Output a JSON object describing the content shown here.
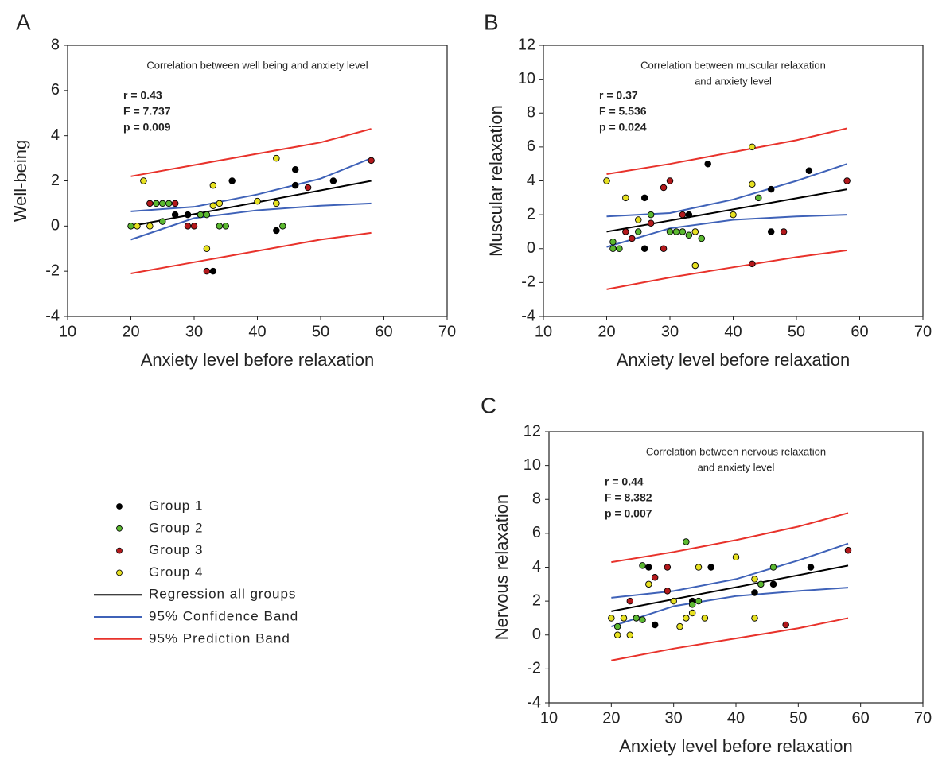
{
  "chart_data": [
    {
      "type": "scatter",
      "panel": "A",
      "title": [
        "Correlation between well being and anxiety level"
      ],
      "annotations": [
        "r = 0.43",
        "F = 7.737",
        "p = 0.009"
      ],
      "x_label": "Anxiety level before relaxation",
      "y_label": "Well-being",
      "xlim": [
        10,
        70
      ],
      "xticks": [
        10,
        20,
        30,
        40,
        50,
        60,
        70
      ],
      "ylim": [
        -4,
        8
      ],
      "yticks": [
        -4,
        -2,
        0,
        2,
        4,
        6,
        8
      ],
      "legend": true,
      "series": [
        {
          "name": "Group 1",
          "type": "scatter",
          "color": "#000000",
          "x": [
            27,
            29,
            33,
            36,
            43,
            46,
            46,
            52
          ],
          "values": [
            0.5,
            0.5,
            -2,
            2,
            -0.2,
            2.5,
            1.8,
            2
          ]
        },
        {
          "name": "Group 2",
          "type": "scatter",
          "color": "#5bb830",
          "x": [
            20,
            24,
            25,
            25,
            26,
            31,
            32,
            34,
            35,
            44
          ],
          "values": [
            0,
            1,
            1,
            0.2,
            1,
            0.5,
            0.5,
            0,
            0,
            0
          ]
        },
        {
          "name": "Group 3",
          "type": "scatter",
          "color": "#b3191c",
          "x": [
            23,
            27,
            29,
            30,
            32,
            48,
            58
          ],
          "values": [
            1,
            1,
            0,
            0,
            -2,
            1.7,
            2.9
          ]
        },
        {
          "name": "Group 4",
          "type": "scatter",
          "color": "#e6e021",
          "x": [
            21,
            22,
            23,
            32,
            33,
            33,
            34,
            40,
            43,
            43
          ],
          "values": [
            0,
            2,
            0,
            -1,
            1.8,
            0.9,
            1,
            1.1,
            3,
            1
          ]
        },
        {
          "name": "Regression all groups",
          "type": "line",
          "color": "#000000",
          "x": [
            20,
            58
          ],
          "values": [
            0,
            2
          ]
        },
        {
          "name": "95% Confidence Band",
          "type": "band",
          "color": "#3f62b8",
          "x": [
            20,
            30,
            40,
            50,
            58
          ],
          "upper": [
            0.65,
            0.85,
            1.4,
            2.1,
            3
          ],
          "lower": [
            -0.6,
            0.35,
            0.7,
            0.9,
            1
          ]
        },
        {
          "name": "95% Prediction Band",
          "type": "band",
          "color": "#e8322b",
          "x": [
            20,
            30,
            40,
            50,
            58
          ],
          "upper": [
            2.2,
            2.7,
            3.2,
            3.7,
            4.3
          ],
          "lower": [
            -2.1,
            -1.6,
            -1.1,
            -0.6,
            -0.3
          ]
        }
      ]
    },
    {
      "type": "scatter",
      "panel": "B",
      "title": [
        "Correlation between muscular relaxation",
        "and anxiety level"
      ],
      "annotations": [
        "r = 0.37",
        "F = 5.536",
        "p = 0.024"
      ],
      "x_label": "Anxiety level before relaxation",
      "y_label": "Muscular relaxation",
      "xlim": [
        10,
        70
      ],
      "xticks": [
        10,
        20,
        30,
        40,
        50,
        60,
        70
      ],
      "ylim": [
        -4,
        12
      ],
      "yticks": [
        -4,
        -2,
        0,
        2,
        4,
        6,
        8,
        10,
        12
      ],
      "legend": false,
      "series": [
        {
          "name": "Group 1",
          "type": "scatter",
          "color": "#000000",
          "x": [
            26,
            26,
            33,
            36,
            46,
            46,
            52
          ],
          "values": [
            3,
            0,
            2,
            5,
            3.5,
            1,
            4.6
          ]
        },
        {
          "name": "Group 2",
          "type": "scatter",
          "color": "#5bb830",
          "x": [
            21,
            21,
            22,
            25,
            27,
            30,
            31,
            32,
            33,
            35,
            44
          ],
          "values": [
            0.4,
            0,
            0,
            1,
            2,
            1,
            1,
            1,
            0.8,
            0.6,
            3
          ]
        },
        {
          "name": "Group 3",
          "type": "scatter",
          "color": "#b3191c",
          "x": [
            23,
            24,
            27,
            29,
            29,
            30,
            32,
            43,
            48,
            58
          ],
          "values": [
            1,
            0.6,
            1.5,
            3.6,
            0,
            4,
            2,
            -0.9,
            1,
            4
          ]
        },
        {
          "name": "Group 4",
          "type": "scatter",
          "color": "#e6e021",
          "x": [
            20,
            23,
            25,
            34,
            34,
            40,
            43,
            43
          ],
          "values": [
            4,
            3,
            1.7,
            1,
            -1,
            2,
            6,
            3.8
          ]
        },
        {
          "name": "Regression all groups",
          "type": "line",
          "color": "#000000",
          "x": [
            20,
            58
          ],
          "values": [
            1,
            3.5
          ]
        },
        {
          "name": "95% Confidence Band",
          "type": "band",
          "color": "#3f62b8",
          "x": [
            20,
            30,
            40,
            50,
            58
          ],
          "upper": [
            1.9,
            2.1,
            2.9,
            4,
            5
          ],
          "lower": [
            0.1,
            1.2,
            1.7,
            1.9,
            2
          ]
        },
        {
          "name": "95% Prediction Band",
          "type": "band",
          "color": "#e8322b",
          "x": [
            20,
            30,
            40,
            50,
            58
          ],
          "upper": [
            4.4,
            5,
            5.7,
            6.4,
            7.1
          ],
          "lower": [
            -2.4,
            -1.7,
            -1.1,
            -0.5,
            -0.1
          ]
        }
      ]
    },
    {
      "type": "scatter",
      "panel": "C",
      "title": [
        "Correlation between nervous relaxation",
        "and anxiety level"
      ],
      "annotations": [
        "r = 0.44",
        "F = 8.382",
        "p = 0.007"
      ],
      "x_label": "Anxiety level before relaxation",
      "y_label": "Nervous relaxation",
      "xlim": [
        10,
        70
      ],
      "xticks": [
        10,
        20,
        30,
        40,
        50,
        60,
        70
      ],
      "ylim": [
        -4,
        12
      ],
      "yticks": [
        -4,
        -2,
        0,
        2,
        4,
        6,
        8,
        10,
        12
      ],
      "legend": false,
      "series": [
        {
          "name": "Group 1",
          "type": "scatter",
          "color": "#000000",
          "x": [
            26,
            27,
            33,
            36,
            43,
            46,
            52
          ],
          "values": [
            4,
            0.6,
            2,
            4,
            2.5,
            3,
            4
          ]
        },
        {
          "name": "Group 2",
          "type": "scatter",
          "color": "#5bb830",
          "x": [
            21,
            24,
            25,
            25,
            32,
            33,
            34,
            44,
            46
          ],
          "values": [
            0.5,
            1,
            4.1,
            0.9,
            5.5,
            1.8,
            2,
            3,
            4
          ]
        },
        {
          "name": "Group 3",
          "type": "scatter",
          "color": "#b3191c",
          "x": [
            23,
            27,
            29,
            29,
            48,
            58
          ],
          "values": [
            2,
            3.4,
            4,
            2.6,
            0.6,
            5
          ]
        },
        {
          "name": "Group 4",
          "type": "scatter",
          "color": "#e6e021",
          "x": [
            20,
            21,
            22,
            23,
            26,
            30,
            31,
            32,
            33,
            34,
            35,
            40,
            43,
            43
          ],
          "values": [
            1,
            0,
            1,
            0,
            3,
            2,
            0.5,
            1,
            1.3,
            4,
            1,
            4.6,
            3.3,
            1
          ]
        },
        {
          "name": "Regression all groups",
          "type": "line",
          "color": "#000000",
          "x": [
            20,
            58
          ],
          "values": [
            1.4,
            4.1
          ]
        },
        {
          "name": "95% Confidence Band",
          "type": "band",
          "color": "#3f62b8",
          "x": [
            20,
            30,
            40,
            50,
            58
          ],
          "upper": [
            2.2,
            2.6,
            3.3,
            4.4,
            5.4
          ],
          "lower": [
            0.5,
            1.7,
            2.3,
            2.6,
            2.8
          ]
        },
        {
          "name": "95% Prediction Band",
          "type": "band",
          "color": "#e8322b",
          "x": [
            20,
            30,
            40,
            50,
            58
          ],
          "upper": [
            4.3,
            4.9,
            5.6,
            6.4,
            7.2
          ],
          "lower": [
            -1.5,
            -0.8,
            -0.2,
            0.4,
            1
          ]
        }
      ]
    }
  ]
}
